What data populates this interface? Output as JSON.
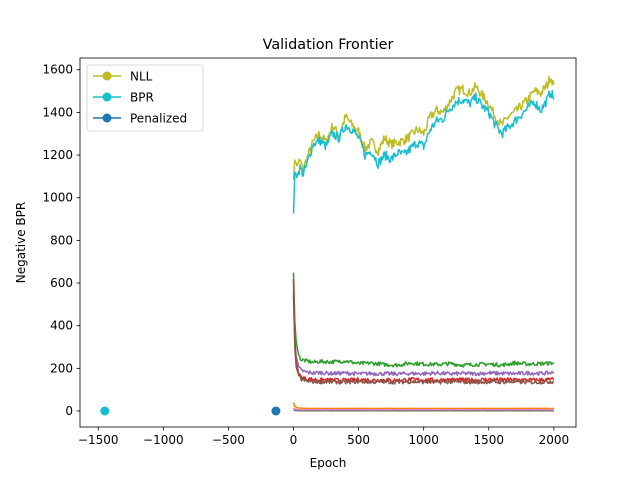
{
  "chart_data": {
    "type": "line",
    "title": "Validation Frontier",
    "xlabel": "Epoch",
    "ylabel": "Negative BPR",
    "xlim": [
      -1640,
      2170
    ],
    "ylim": [
      -75,
      1655
    ],
    "xticks": [
      -1500,
      -1000,
      -500,
      0,
      500,
      1000,
      1500,
      2000
    ],
    "xtick_labels": [
      "−1500",
      "−1000",
      "−500",
      "0",
      "500",
      "1000",
      "1500",
      "2000"
    ],
    "yticks": [
      0,
      200,
      400,
      600,
      800,
      1000,
      1200,
      1400,
      1600
    ],
    "ytick_labels": [
      "0",
      "200",
      "400",
      "600",
      "800",
      "1000",
      "1200",
      "1400",
      "1600"
    ],
    "grid": false,
    "legend_position": "top-left",
    "legend": [
      {
        "name": "NLL",
        "color": "#bcbd22"
      },
      {
        "name": "BPR",
        "color": "#17becf"
      },
      {
        "name": "Penalized",
        "color": "#1f77b4"
      }
    ],
    "series": [
      {
        "name": "NLL",
        "color": "#bcbd22",
        "x": [
          0,
          10,
          25,
          50,
          75,
          100,
          150,
          200,
          250,
          300,
          350,
          400,
          450,
          500,
          550,
          600,
          650,
          700,
          750,
          800,
          850,
          900,
          950,
          1000,
          1050,
          1100,
          1150,
          1200,
          1250,
          1300,
          1350,
          1400,
          1450,
          1500,
          1550,
          1600,
          1650,
          1700,
          1750,
          1800,
          1850,
          1900,
          1950,
          1975,
          2000
        ],
        "y": [
          1090,
          1180,
          1150,
          1175,
          1130,
          1180,
          1260,
          1300,
          1260,
          1340,
          1290,
          1380,
          1340,
          1310,
          1230,
          1260,
          1220,
          1280,
          1250,
          1260,
          1270,
          1290,
          1320,
          1300,
          1380,
          1410,
          1400,
          1450,
          1500,
          1510,
          1490,
          1520,
          1480,
          1440,
          1380,
          1340,
          1380,
          1400,
          1430,
          1460,
          1500,
          1490,
          1530,
          1570,
          1530
        ]
      },
      {
        "name": "BPR",
        "color": "#17becf",
        "x": [
          0,
          10,
          25,
          50,
          75,
          100,
          150,
          200,
          250,
          300,
          350,
          400,
          450,
          500,
          550,
          600,
          650,
          700,
          750,
          800,
          850,
          900,
          950,
          1000,
          1050,
          1100,
          1150,
          1200,
          1250,
          1300,
          1350,
          1400,
          1450,
          1500,
          1550,
          1600,
          1650,
          1700,
          1750,
          1800,
          1850,
          1900,
          1950,
          1975,
          2000
        ],
        "y": [
          920,
          1120,
          1100,
          1140,
          1110,
          1150,
          1250,
          1270,
          1240,
          1300,
          1280,
          1340,
          1320,
          1280,
          1200,
          1220,
          1160,
          1200,
          1180,
          1210,
          1200,
          1230,
          1260,
          1240,
          1320,
          1360,
          1370,
          1420,
          1450,
          1460,
          1440,
          1470,
          1430,
          1400,
          1340,
          1300,
          1330,
          1360,
          1390,
          1420,
          1450,
          1410,
          1460,
          1500,
          1460
        ]
      },
      {
        "name": "",
        "color": "#2ca02c",
        "x": [
          0,
          10,
          20,
          40,
          60,
          100,
          150,
          200,
          300,
          400,
          500,
          600,
          700,
          800,
          900,
          1000,
          1100,
          1200,
          1300,
          1400,
          1500,
          1600,
          1700,
          1800,
          1900,
          2000
        ],
        "y": [
          650,
          420,
          330,
          260,
          240,
          235,
          228,
          232,
          230,
          235,
          222,
          225,
          218,
          215,
          225,
          220,
          218,
          222,
          215,
          218,
          220,
          215,
          225,
          220,
          222,
          225
        ]
      },
      {
        "name": "",
        "color": "#9467bd",
        "x": [
          0,
          10,
          20,
          40,
          60,
          100,
          150,
          200,
          300,
          400,
          500,
          600,
          700,
          800,
          900,
          1000,
          1100,
          1200,
          1300,
          1400,
          1500,
          1600,
          1700,
          1800,
          1900,
          2000
        ],
        "y": [
          540,
          340,
          260,
          205,
          190,
          182,
          178,
          180,
          176,
          178,
          174,
          176,
          175,
          174,
          176,
          175,
          178,
          174,
          176,
          175,
          178,
          176,
          175,
          178,
          176,
          180
        ]
      },
      {
        "name": "",
        "color": "#d62728",
        "x": [
          0,
          10,
          20,
          40,
          60,
          100,
          150,
          200,
          300,
          400,
          500,
          600,
          700,
          800,
          900,
          1000,
          1100,
          1200,
          1300,
          1400,
          1500,
          1600,
          1700,
          1800,
          1900,
          2000
        ],
        "y": [
          620,
          330,
          230,
          175,
          158,
          150,
          148,
          146,
          145,
          144,
          147,
          145,
          146,
          144,
          148,
          146,
          145,
          147,
          146,
          145,
          148,
          146,
          147,
          145,
          146,
          148
        ]
      },
      {
        "name": "",
        "color": "#8c564b",
        "x": [
          0,
          10,
          20,
          40,
          60,
          100,
          150,
          200,
          300,
          400,
          500,
          600,
          700,
          800,
          900,
          1000,
          1100,
          1200,
          1300,
          1400,
          1500,
          1600,
          1700,
          1800,
          1900,
          2000
        ],
        "y": [
          560,
          300,
          210,
          165,
          148,
          140,
          138,
          137,
          136,
          135,
          138,
          136,
          137,
          135,
          138,
          136,
          135,
          137,
          136,
          135,
          137,
          136,
          137,
          135,
          136,
          138
        ]
      },
      {
        "name": "",
        "color": "#ff7f0e",
        "x": [
          0,
          10,
          30,
          60,
          100,
          200,
          500,
          1000,
          1500,
          2000
        ],
        "y": [
          40,
          22,
          15,
          13,
          12,
          12,
          12,
          12,
          12,
          12
        ]
      },
      {
        "name": "",
        "color": "#e377c2",
        "x": [
          0,
          10,
          30,
          60,
          100,
          200,
          500,
          1000,
          1500,
          2000
        ],
        "y": [
          15,
          8,
          6,
          5,
          5,
          5,
          5,
          5,
          5,
          5
        ]
      },
      {
        "name": "",
        "color": "#7f7f7f",
        "x": [
          0,
          10,
          30,
          60,
          100,
          200,
          500,
          1000,
          1500,
          2000
        ],
        "y": [
          4,
          2,
          1,
          1,
          1,
          1,
          1,
          1,
          1,
          1
        ]
      }
    ],
    "points": [
      {
        "x": -1450,
        "y": 0,
        "color": "#17becf"
      },
      {
        "x": -135,
        "y": 0,
        "color": "#1f77b4"
      }
    ]
  }
}
